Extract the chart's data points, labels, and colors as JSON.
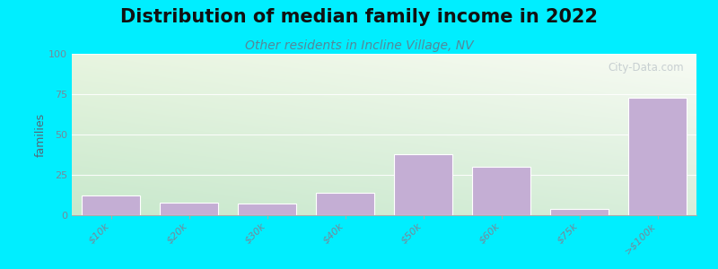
{
  "title": "Distribution of median family income in 2022",
  "subtitle": "Other residents in Incline Village, NV",
  "categories": [
    "$10k",
    "$20k",
    "$30k",
    "$40k",
    "$50k",
    "$60k",
    "$75k",
    ">$100k"
  ],
  "values": [
    12,
    8,
    7,
    14,
    38,
    30,
    4,
    73
  ],
  "bar_color": "#c4aed4",
  "ylabel": "families",
  "ylim": [
    0,
    100
  ],
  "yticks": [
    0,
    25,
    50,
    75,
    100
  ],
  "bg_outer": "#00eeff",
  "title_fontsize": 15,
  "subtitle_fontsize": 10,
  "subtitle_color": "#558899",
  "watermark": "City-Data.com",
  "tick_label_color": "#778899",
  "ylabel_color": "#556677",
  "grad_top_left": "#e8f5e0",
  "grad_top_right": "#f8fbf4",
  "grad_bottom_left": "#d0ecd8",
  "grad_bottom_right": "#eef8f0"
}
